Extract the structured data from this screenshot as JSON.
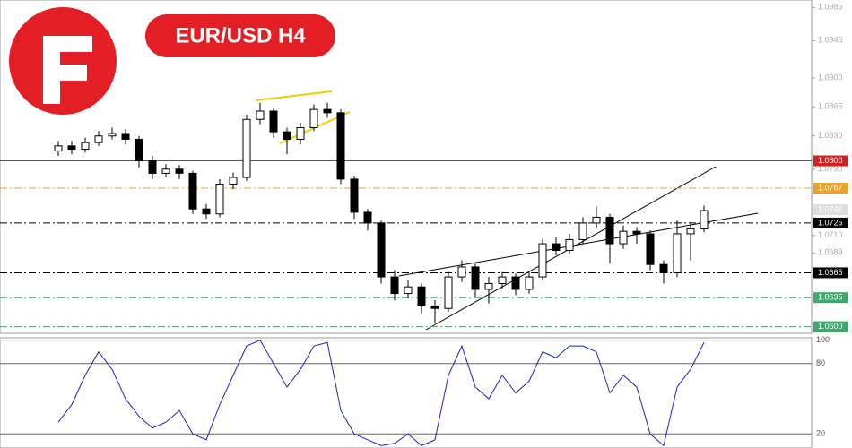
{
  "chart_data": [
    {
      "type": "candlestick",
      "title": "EUR/USD H4",
      "open": [
        1.0812,
        1.0818,
        1.0814,
        1.0822,
        1.083,
        1.0833,
        1.0826,
        1.08,
        1.0785,
        1.079,
        1.0785,
        1.0742,
        1.0736,
        1.0772,
        1.078,
        1.085,
        1.086,
        1.0835,
        1.0826,
        1.084,
        1.0862,
        1.0858,
        1.0778,
        1.0738,
        1.0725,
        1.066,
        1.064,
        1.0648,
        1.0625,
        1.0622,
        1.066,
        1.0672,
        1.0645,
        1.0652,
        1.066,
        1.0645,
        1.066,
        1.07,
        1.0692,
        1.0705,
        1.0725,
        1.0732,
        1.07,
        1.0715,
        1.0712,
        1.0675,
        1.0665,
        1.0712,
        1.0718
      ],
      "high": [
        1.0824,
        1.0824,
        1.0828,
        1.0836,
        1.084,
        1.0838,
        1.083,
        1.0806,
        1.0796,
        1.0795,
        1.0788,
        1.0748,
        1.0778,
        1.0786,
        1.0856,
        1.087,
        1.0864,
        1.084,
        1.0846,
        1.0868,
        1.087,
        1.0862,
        1.0782,
        1.0742,
        1.0728,
        1.0668,
        1.0656,
        1.0652,
        1.0632,
        1.0666,
        1.068,
        1.0676,
        1.066,
        1.0666,
        1.0664,
        1.0666,
        1.0706,
        1.0708,
        1.0712,
        1.0732,
        1.0745,
        1.0736,
        1.0722,
        1.072,
        1.0716,
        1.068,
        1.0728,
        1.0726,
        1.0746
      ],
      "low": [
        1.0806,
        1.0808,
        1.081,
        1.0818,
        1.0826,
        1.082,
        1.0792,
        1.0778,
        1.078,
        1.0778,
        1.0736,
        1.073,
        1.0732,
        1.0766,
        1.0776,
        1.0844,
        1.0828,
        1.0808,
        1.082,
        1.0836,
        1.0852,
        1.0772,
        1.073,
        1.0716,
        1.0652,
        1.0632,
        1.0634,
        1.0616,
        1.0604,
        1.0618,
        1.0654,
        1.0636,
        1.0628,
        1.0646,
        1.0638,
        1.064,
        1.0656,
        1.0686,
        1.0688,
        1.07,
        1.0718,
        1.0676,
        1.0694,
        1.07,
        1.0668,
        1.0652,
        1.066,
        1.068,
        1.0714
      ],
      "close": [
        1.0818,
        1.0814,
        1.0822,
        1.083,
        1.0833,
        1.0826,
        1.08,
        1.0785,
        1.079,
        1.0785,
        1.0742,
        1.0736,
        1.0772,
        1.078,
        1.085,
        1.086,
        1.0835,
        1.0826,
        1.084,
        1.0862,
        1.0858,
        1.0778,
        1.0738,
        1.0725,
        1.066,
        1.064,
        1.0648,
        1.0625,
        1.0622,
        1.066,
        1.0672,
        1.0645,
        1.0652,
        1.066,
        1.0645,
        1.066,
        1.07,
        1.0692,
        1.0705,
        1.0725,
        1.0732,
        1.07,
        1.0715,
        1.0712,
        1.0675,
        1.0665,
        1.0712,
        1.0718,
        1.074
      ],
      "ylim": [
        1.0592,
        1.0994
      ],
      "yticks": [
        {
          "value": 1.0985,
          "label": "1.0985"
        },
        {
          "value": 1.0945,
          "label": "1.0945"
        },
        {
          "value": 1.09,
          "label": "1.0900"
        },
        {
          "value": 1.0865,
          "label": "1.0865"
        },
        {
          "value": 1.083,
          "label": "1.0830"
        },
        {
          "value": 1.079,
          "label": "1.0790"
        },
        {
          "value": 1.071,
          "label": "1.0710"
        },
        {
          "value": 1.0689,
          "label": "1.0689"
        }
      ],
      "levels": [
        {
          "value": 1.08,
          "label": "1.0800",
          "color": "#d62020",
          "style": "solid"
        },
        {
          "value": 1.0767,
          "label": "1.0767",
          "color": "#f0a020",
          "style": "dashdot"
        },
        {
          "value": 1.0741,
          "label": "1.0741",
          "color": "#b0b0b0",
          "style": "none"
        },
        {
          "value": 1.0725,
          "label": "1.0725",
          "color": "#000000",
          "style": "dashdot"
        },
        {
          "value": 1.0665,
          "label": "1.0665",
          "color": "#000000",
          "style": "dashdot"
        },
        {
          "value": 1.0635,
          "label": "1.0635",
          "color": "#3aaa6a",
          "style": "dashdot"
        },
        {
          "value": 1.06,
          "label": "1.0600",
          "color": "#3aaa6a",
          "style": "dashdot"
        }
      ]
    },
    {
      "type": "line",
      "values": [
        30,
        45,
        70,
        90,
        75,
        50,
        35,
        25,
        30,
        40,
        20,
        15,
        45,
        70,
        95,
        100,
        80,
        60,
        75,
        95,
        98,
        40,
        20,
        15,
        10,
        12,
        20,
        10,
        15,
        70,
        95,
        60,
        50,
        70,
        55,
        65,
        90,
        85,
        95,
        95,
        90,
        55,
        70,
        60,
        20,
        10,
        60,
        75,
        98
      ],
      "color": "#2020c0",
      "ylim": [
        8,
        102
      ],
      "yticks": [
        20,
        80,
        100
      ],
      "grid": true
    }
  ]
}
